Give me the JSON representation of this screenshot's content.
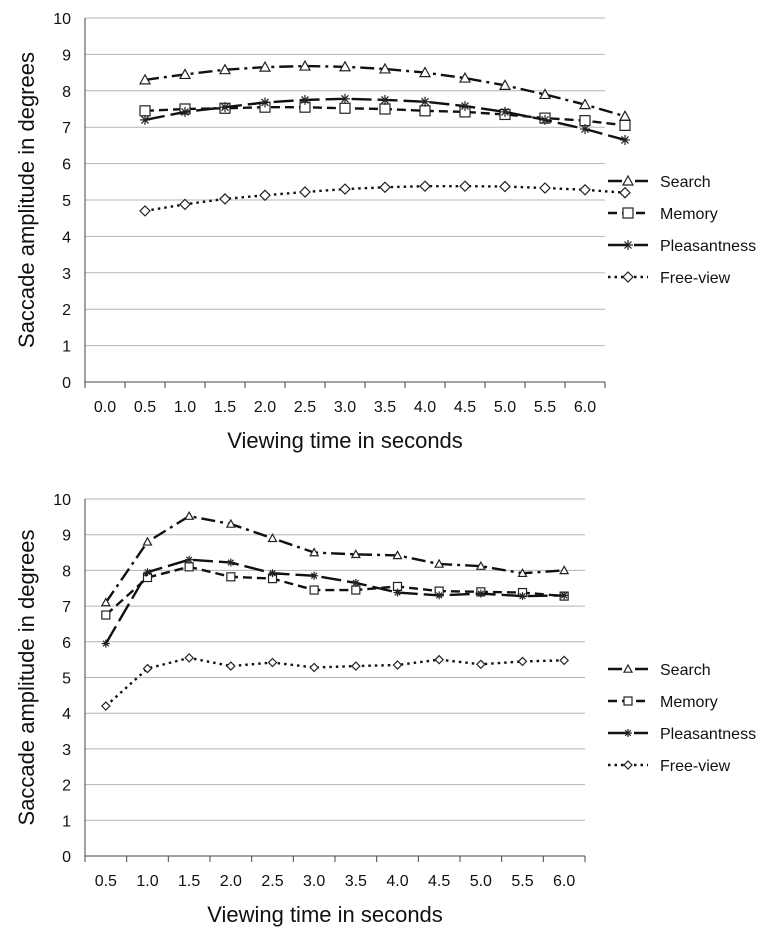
{
  "chart_data": [
    {
      "type": "line",
      "xlabel": "Viewing time in seconds",
      "ylabel": "Saccade amplitude in degrees",
      "ylim": [
        0,
        10
      ],
      "yticks": [
        "0",
        "1",
        "2",
        "3",
        "4",
        "5",
        "6",
        "7",
        "8",
        "9",
        "10"
      ],
      "xticks": [
        "0.0",
        "0.5",
        "1.0",
        "1.5",
        "2.0",
        "2.5",
        "3.0",
        "3.5",
        "4.0",
        "4.5",
        "5.0",
        "5.5",
        "6.0"
      ],
      "x": [
        0.5,
        1.0,
        1.5,
        2.0,
        2.5,
        3.0,
        3.5,
        4.0,
        4.5,
        5.0,
        5.5,
        6.0,
        6.5
      ],
      "grid": true,
      "legend": "right",
      "series": [
        {
          "name": "Search",
          "dash": "dashdot",
          "marker": "triangle",
          "values": [
            8.3,
            8.45,
            8.58,
            8.65,
            8.68,
            8.66,
            8.6,
            8.5,
            8.35,
            8.15,
            7.9,
            7.62,
            7.3
          ]
        },
        {
          "name": "Memory",
          "dash": "dash",
          "marker": "square",
          "values": [
            7.45,
            7.5,
            7.52,
            7.55,
            7.55,
            7.52,
            7.5,
            7.45,
            7.42,
            7.35,
            7.25,
            7.18,
            7.05
          ]
        },
        {
          "name": "Pleasantness",
          "dash": "longdash",
          "marker": "star",
          "values": [
            7.2,
            7.42,
            7.55,
            7.68,
            7.75,
            7.78,
            7.75,
            7.7,
            7.58,
            7.42,
            7.2,
            6.95,
            6.65
          ]
        },
        {
          "name": "Free-view",
          "dash": "dot",
          "marker": "diamond",
          "values": [
            4.7,
            4.88,
            5.03,
            5.13,
            5.22,
            5.3,
            5.35,
            5.38,
            5.38,
            5.37,
            5.33,
            5.28,
            5.2
          ]
        }
      ]
    },
    {
      "type": "line",
      "xlabel": "Viewing time in seconds",
      "ylabel": "Saccade amplitude in degrees",
      "ylim": [
        0,
        10
      ],
      "yticks": [
        "0",
        "1",
        "2",
        "3",
        "4",
        "5",
        "6",
        "7",
        "8",
        "9",
        "10"
      ],
      "xticks": [
        "0.5",
        "1.0",
        "1.5",
        "2.0",
        "2.5",
        "3.0",
        "3.5",
        "4.0",
        "4.5",
        "5.0",
        "5.5",
        "6.0"
      ],
      "x": [
        0.5,
        1.0,
        1.5,
        2.0,
        2.5,
        3.0,
        3.5,
        4.0,
        4.5,
        5.0,
        5.5,
        6.0
      ],
      "grid": true,
      "legend": "right",
      "series": [
        {
          "name": "Search",
          "dash": "dashdot",
          "marker": "triangle",
          "values": [
            7.1,
            8.8,
            9.52,
            9.3,
            8.9,
            8.5,
            8.45,
            8.42,
            8.18,
            8.12,
            7.92,
            8.0
          ]
        },
        {
          "name": "Memory",
          "dash": "dash",
          "marker": "square",
          "values": [
            6.75,
            7.8,
            8.1,
            7.82,
            7.77,
            7.45,
            7.45,
            7.55,
            7.42,
            7.4,
            7.38,
            7.28
          ]
        },
        {
          "name": "Pleasantness",
          "dash": "longdash",
          "marker": "star",
          "values": [
            5.95,
            7.95,
            8.3,
            8.22,
            7.92,
            7.85,
            7.65,
            7.38,
            7.3,
            7.35,
            7.28,
            7.3
          ]
        },
        {
          "name": "Free-view",
          "dash": "dot",
          "marker": "diamond",
          "values": [
            4.2,
            5.25,
            5.55,
            5.32,
            5.42,
            5.28,
            5.32,
            5.35,
            5.5,
            5.37,
            5.45,
            5.48
          ]
        }
      ]
    }
  ]
}
